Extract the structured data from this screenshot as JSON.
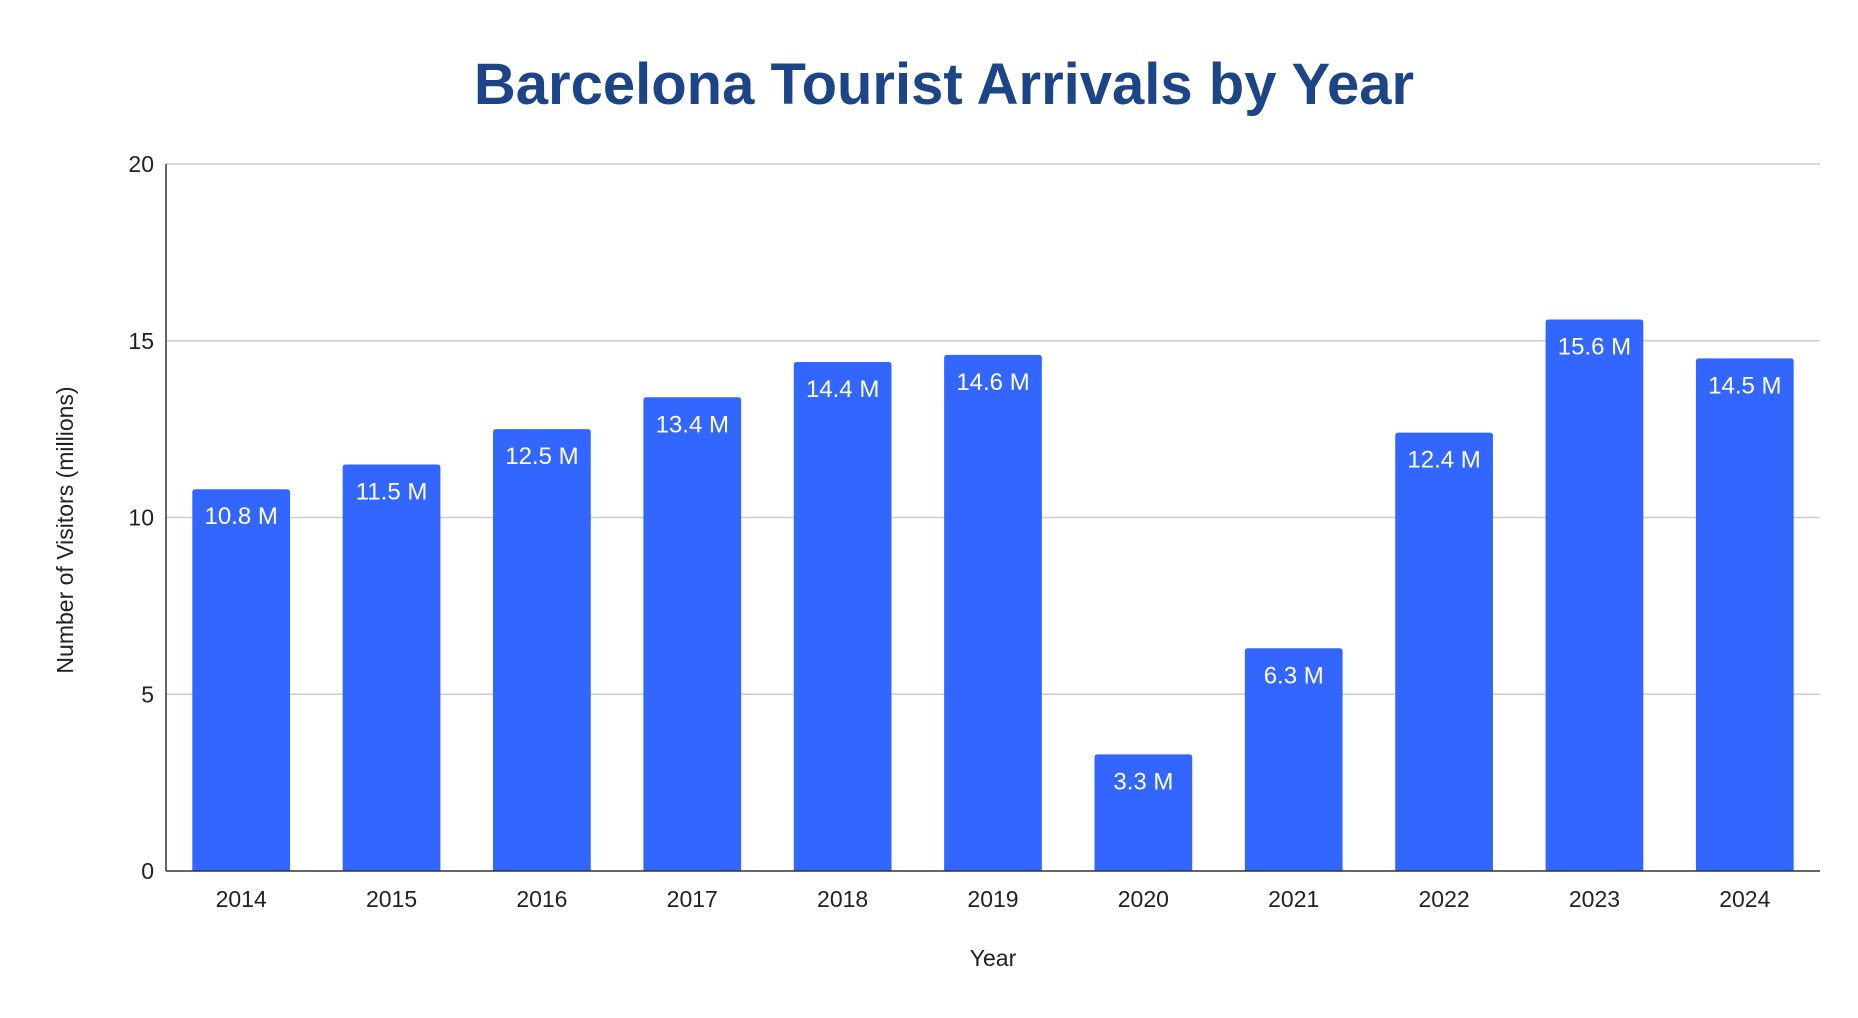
{
  "chart_data": {
    "type": "bar",
    "title": "Barcelona Tourist Arrivals by Year",
    "xlabel": "Year",
    "ylabel": "Number of Visitors (millions)",
    "categories": [
      "2014",
      "2015",
      "2016",
      "2017",
      "2018",
      "2019",
      "2020",
      "2021",
      "2022",
      "2023",
      "2024"
    ],
    "values": [
      10.8,
      11.5,
      12.5,
      13.4,
      14.4,
      14.6,
      3.3,
      6.3,
      12.4,
      15.6,
      14.5
    ],
    "data_labels": [
      "10.8 M",
      "11.5 M",
      "12.5 M",
      "13.4 M",
      "14.4 M",
      "14.6 M",
      "3.3 M",
      "6.3 M",
      "12.4 M",
      "15.6 M",
      "14.5 M"
    ],
    "ylim": [
      0,
      20
    ],
    "yticks": [
      0,
      5,
      10,
      15,
      20
    ],
    "grid": true,
    "legend": "none",
    "colors": {
      "bar": "#3366ff",
      "title": "#1c4587",
      "grid": "#cccccc",
      "axis": "#333333"
    }
  }
}
